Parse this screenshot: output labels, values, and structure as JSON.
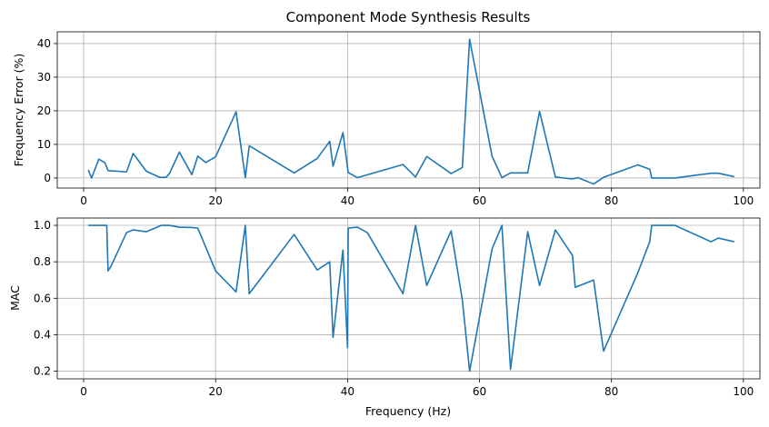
{
  "chart_data": [
    {
      "type": "line",
      "title": "Component Mode Synthesis Results",
      "xlabel": "",
      "ylabel": "Frequency Error (%)",
      "xlim": [
        -4,
        102.5
      ],
      "ylim": [
        -3,
        43.5
      ],
      "xticks": [
        0,
        20,
        40,
        60,
        80,
        100
      ],
      "yticks": [
        0,
        10,
        20,
        30,
        40
      ],
      "grid": true,
      "color": "#1f77b4",
      "series": [
        {
          "name": "Frequency Error",
          "x": [
            0.7,
            1.2,
            2.3,
            3.2,
            3.7,
            6.5,
            7.5,
            9.5,
            11.5,
            12.5,
            13.0,
            14.5,
            16.4,
            17.3,
            18.5,
            20.0,
            23.1,
            24.5,
            25.1,
            31.9,
            35.4,
            37.3,
            37.8,
            39.3,
            40.1,
            41.5,
            48.4,
            50.3,
            52.0,
            55.7,
            57.4,
            58.5,
            61.9,
            63.4,
            64.7,
            67.3,
            69.1,
            71.5,
            74.1,
            74.9,
            77.3,
            78.8,
            84.0,
            85.8,
            86.1,
            89.6,
            95.1,
            96.2,
            98.6
          ],
          "values": [
            2.4,
            0.0,
            5.6,
            4.6,
            2.2,
            1.8,
            7.3,
            2.0,
            0.2,
            0.2,
            1.3,
            7.7,
            1.0,
            6.5,
            4.6,
            6.3,
            19.7,
            0.1,
            9.6,
            1.5,
            5.8,
            10.9,
            3.5,
            13.5,
            1.6,
            0.1,
            4.0,
            0.3,
            6.4,
            1.3,
            3.1,
            41.3,
            6.5,
            0.1,
            1.5,
            1.5,
            19.8,
            0.3,
            -0.3,
            0.1,
            -1.8,
            0.2,
            3.9,
            2.6,
            0.0,
            0.0,
            1.4,
            1.4,
            0.4
          ]
        }
      ]
    },
    {
      "type": "line",
      "title": "",
      "xlabel": "Frequency (Hz)",
      "ylabel": "MAC",
      "xlim": [
        -4,
        102.5
      ],
      "ylim": [
        0.158,
        1.04
      ],
      "xticks": [
        0,
        20,
        40,
        60,
        80,
        100
      ],
      "yticks": [
        0.2,
        0.4,
        0.6,
        0.8,
        1.0
      ],
      "grid": true,
      "color": "#1f77b4",
      "series": [
        {
          "name": "MAC",
          "x": [
            0.7,
            2.3,
            3.5,
            3.7,
            4.2,
            6.5,
            7.5,
            9.5,
            11.8,
            13.0,
            14.5,
            16.4,
            17.3,
            20.0,
            23.1,
            24.5,
            25.1,
            31.9,
            35.4,
            37.3,
            37.8,
            39.3,
            40.0,
            40.1,
            41.5,
            43.0,
            48.4,
            50.3,
            52.0,
            55.7,
            57.4,
            58.5,
            61.9,
            63.4,
            64.7,
            67.3,
            69.1,
            71.5,
            74.1,
            74.5,
            77.3,
            78.8,
            84.0,
            85.8,
            86.1,
            89.6,
            95.1,
            96.2,
            98.6
          ],
          "values": [
            1.0,
            1.0,
            1.0,
            0.75,
            0.78,
            0.96,
            0.975,
            0.965,
            1.0,
            1.0,
            0.99,
            0.988,
            0.985,
            0.75,
            0.635,
            1.0,
            0.625,
            0.95,
            0.755,
            0.8,
            0.385,
            0.865,
            0.33,
            0.985,
            0.99,
            0.96,
            0.625,
            1.0,
            0.67,
            0.97,
            0.59,
            0.2,
            0.87,
            1.0,
            0.21,
            0.965,
            0.67,
            0.975,
            0.835,
            0.66,
            0.7,
            0.31,
            0.74,
            0.91,
            1.0,
            1.0,
            0.91,
            0.93,
            0.91
          ]
        }
      ]
    }
  ]
}
